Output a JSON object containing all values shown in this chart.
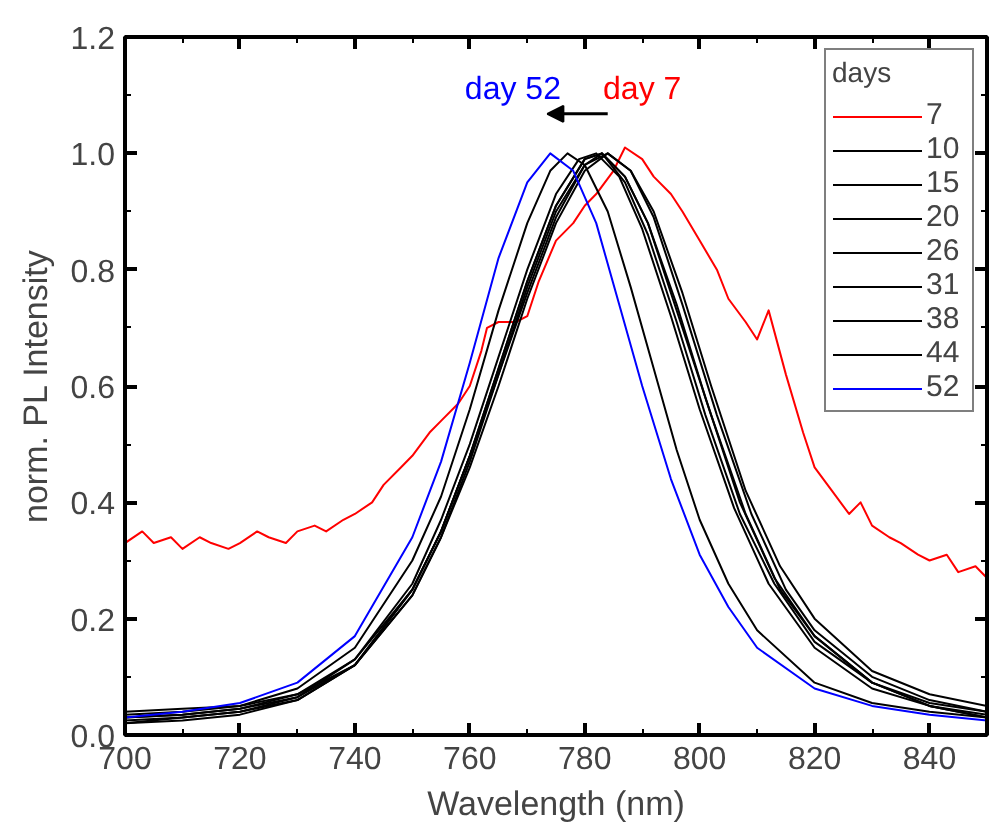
{
  "chart_data": {
    "type": "line",
    "xlabel": "Wavelength (nm)",
    "ylabel": "norm. PL Intensity",
    "legend_title": "days",
    "legend": "top right",
    "grid": false,
    "marker": "none",
    "line_style": "solid",
    "xlim": [
      700,
      850
    ],
    "ylim": [
      0,
      1.2
    ],
    "xticks": [
      700,
      720,
      740,
      760,
      780,
      800,
      820,
      840
    ],
    "yticks": [
      {
        "value": 0,
        "label": "0.0"
      },
      {
        "value": 0.2,
        "label": "0.2"
      },
      {
        "value": 0.4,
        "label": "0.4"
      },
      {
        "value": 0.6,
        "label": "0.6"
      },
      {
        "value": 0.8,
        "label": "0.8"
      },
      {
        "value": 1.0,
        "label": "1.0"
      },
      {
        "value": 1.2,
        "label": "1.2"
      }
    ],
    "annotations": [
      "day 52",
      "day 7"
    ],
    "series": [
      {
        "name": "7",
        "color": "#ff0000",
        "x": [
          700,
          703,
          705,
          708,
          710,
          713,
          715,
          718,
          720,
          723,
          725,
          728,
          730,
          733,
          735,
          738,
          740,
          743,
          745,
          748,
          750,
          753,
          755,
          758,
          760,
          762,
          763,
          765,
          768,
          770,
          772,
          775,
          778,
          780,
          782,
          785,
          787,
          790,
          792,
          795,
          797,
          800,
          803,
          805,
          808,
          810,
          812,
          815,
          818,
          820,
          823,
          826,
          828,
          830,
          833,
          835,
          838,
          840,
          843,
          845,
          848,
          850
        ],
        "values": [
          0.33,
          0.35,
          0.33,
          0.34,
          0.32,
          0.34,
          0.33,
          0.32,
          0.33,
          0.35,
          0.34,
          0.33,
          0.35,
          0.36,
          0.35,
          0.37,
          0.38,
          0.4,
          0.43,
          0.46,
          0.48,
          0.52,
          0.54,
          0.57,
          0.6,
          0.66,
          0.7,
          0.71,
          0.71,
          0.72,
          0.78,
          0.85,
          0.88,
          0.91,
          0.93,
          0.97,
          1.01,
          0.99,
          0.96,
          0.93,
          0.9,
          0.85,
          0.8,
          0.75,
          0.71,
          0.68,
          0.73,
          0.62,
          0.52,
          0.46,
          0.42,
          0.38,
          0.4,
          0.36,
          0.34,
          0.33,
          0.31,
          0.3,
          0.31,
          0.28,
          0.29,
          0.27
        ]
      },
      {
        "name": "10",
        "color": "#000000",
        "x": [
          700,
          710,
          720,
          730,
          740,
          750,
          755,
          760,
          765,
          770,
          774,
          777,
          780,
          784,
          788,
          792,
          796,
          800,
          805,
          810,
          820,
          830,
          840,
          850
        ],
        "values": [
          0.035,
          0.04,
          0.05,
          0.08,
          0.15,
          0.3,
          0.41,
          0.56,
          0.73,
          0.88,
          0.97,
          1.0,
          0.98,
          0.9,
          0.77,
          0.63,
          0.49,
          0.37,
          0.26,
          0.18,
          0.09,
          0.055,
          0.04,
          0.03
        ]
      },
      {
        "name": "15",
        "color": "#000000",
        "x": [
          700,
          710,
          720,
          730,
          740,
          750,
          755,
          760,
          765,
          770,
          775,
          779,
          782,
          786,
          790,
          795,
          800,
          806,
          812,
          820,
          830,
          840,
          850
        ],
        "values": [
          0.02,
          0.03,
          0.04,
          0.065,
          0.13,
          0.26,
          0.37,
          0.5,
          0.65,
          0.8,
          0.93,
          0.99,
          1.0,
          0.96,
          0.87,
          0.72,
          0.56,
          0.39,
          0.26,
          0.15,
          0.08,
          0.05,
          0.03
        ]
      },
      {
        "name": "20",
        "color": "#000000",
        "x": [
          700,
          710,
          720,
          730,
          740,
          750,
          755,
          760,
          765,
          770,
          775,
          780,
          783,
          787,
          791,
          796,
          801,
          807,
          813,
          820,
          830,
          840,
          850
        ],
        "values": [
          0.025,
          0.03,
          0.04,
          0.06,
          0.12,
          0.25,
          0.35,
          0.48,
          0.63,
          0.78,
          0.91,
          0.99,
          1.0,
          0.95,
          0.86,
          0.71,
          0.55,
          0.38,
          0.26,
          0.16,
          0.09,
          0.05,
          0.035
        ]
      },
      {
        "name": "26",
        "color": "#000000",
        "x": [
          700,
          710,
          720,
          730,
          740,
          750,
          755,
          760,
          765,
          770,
          775,
          780,
          783,
          787,
          791,
          796,
          802,
          808,
          814,
          820,
          830,
          840,
          850
        ],
        "values": [
          0.02,
          0.025,
          0.035,
          0.06,
          0.12,
          0.24,
          0.34,
          0.47,
          0.62,
          0.77,
          0.9,
          0.98,
          1.0,
          0.96,
          0.88,
          0.73,
          0.55,
          0.38,
          0.25,
          0.17,
          0.09,
          0.05,
          0.03
        ]
      },
      {
        "name": "31",
        "color": "#000000",
        "x": [
          700,
          710,
          720,
          730,
          740,
          750,
          755,
          760,
          765,
          770,
          775,
          780,
          784,
          788,
          792,
          797,
          803,
          809,
          815,
          820,
          830,
          840,
          850
        ],
        "values": [
          0.03,
          0.035,
          0.045,
          0.07,
          0.13,
          0.25,
          0.35,
          0.48,
          0.62,
          0.76,
          0.89,
          0.98,
          1.0,
          0.97,
          0.89,
          0.74,
          0.55,
          0.38,
          0.25,
          0.18,
          0.1,
          0.06,
          0.04
        ]
      },
      {
        "name": "38",
        "color": "#000000",
        "x": [
          700,
          710,
          720,
          730,
          740,
          750,
          755,
          760,
          765,
          770,
          775,
          780,
          783,
          787,
          791,
          796,
          801,
          807,
          813,
          820,
          830,
          840,
          850
        ],
        "values": [
          0.03,
          0.035,
          0.045,
          0.065,
          0.12,
          0.25,
          0.35,
          0.48,
          0.63,
          0.78,
          0.91,
          0.99,
          1.0,
          0.96,
          0.88,
          0.74,
          0.58,
          0.4,
          0.27,
          0.17,
          0.09,
          0.055,
          0.04
        ]
      },
      {
        "name": "44",
        "color": "#000000",
        "x": [
          700,
          710,
          720,
          730,
          740,
          750,
          755,
          760,
          765,
          770,
          775,
          780,
          784,
          788,
          792,
          797,
          802,
          808,
          814,
          820,
          830,
          840,
          850
        ],
        "values": [
          0.04,
          0.045,
          0.05,
          0.07,
          0.12,
          0.24,
          0.34,
          0.46,
          0.6,
          0.75,
          0.88,
          0.97,
          1.0,
          0.97,
          0.9,
          0.76,
          0.6,
          0.42,
          0.29,
          0.2,
          0.11,
          0.07,
          0.05
        ]
      },
      {
        "name": "52",
        "color": "#0000ff",
        "x": [
          700,
          710,
          720,
          730,
          740,
          750,
          755,
          760,
          765,
          770,
          774,
          778,
          782,
          786,
          790,
          795,
          800,
          805,
          810,
          820,
          830,
          840,
          850
        ],
        "values": [
          0.03,
          0.04,
          0.055,
          0.09,
          0.17,
          0.34,
          0.47,
          0.64,
          0.82,
          0.95,
          1.0,
          0.97,
          0.88,
          0.74,
          0.6,
          0.44,
          0.31,
          0.22,
          0.15,
          0.08,
          0.05,
          0.035,
          0.025
        ]
      }
    ]
  }
}
